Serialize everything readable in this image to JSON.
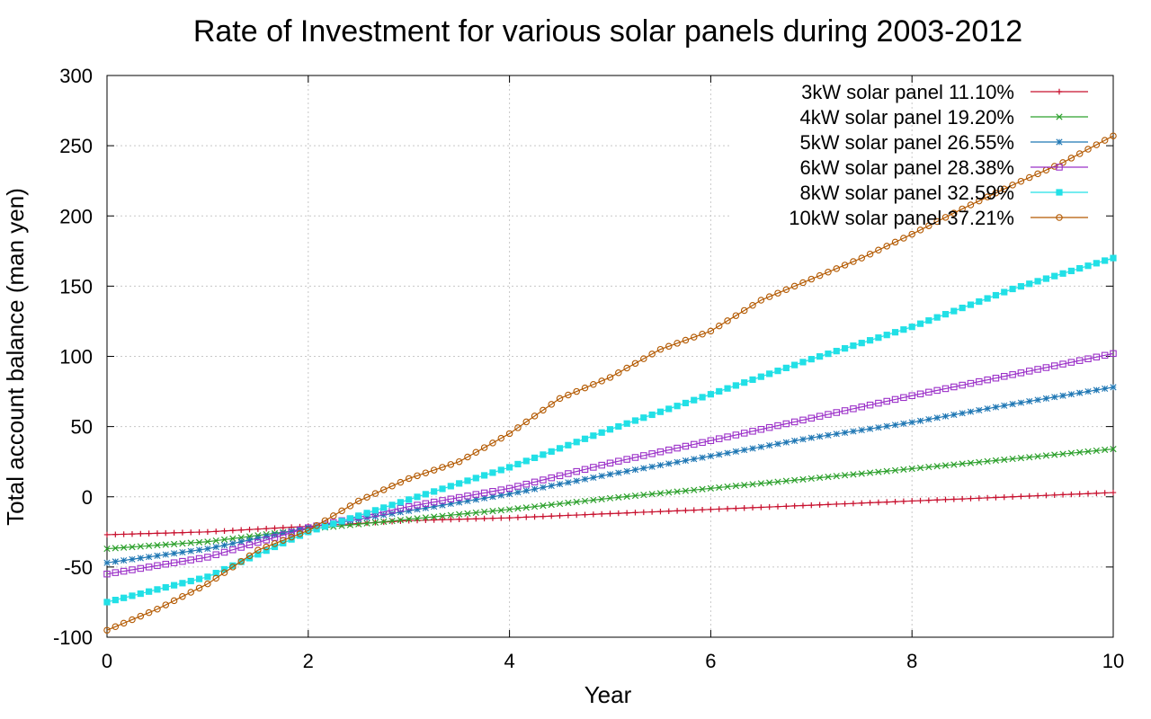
{
  "chart_data": {
    "type": "line",
    "title": "Rate of Investment for various solar panels during 2003-2012",
    "xlabel": "Year",
    "ylabel": "Total account balance (man yen)",
    "xlim": [
      0,
      10
    ],
    "ylim": [
      -100,
      300
    ],
    "xticks": [
      0,
      2,
      4,
      6,
      8,
      10
    ],
    "yticks": [
      -100,
      -50,
      0,
      50,
      100,
      150,
      200,
      250,
      300
    ],
    "grid": true,
    "legend_position": "top-right",
    "series": [
      {
        "name": "3kW solar panel 11.10%",
        "color": "#c8102e",
        "marker": "plus",
        "x": [
          0,
          1,
          2,
          3,
          4,
          5,
          6,
          7,
          8,
          9,
          10
        ],
        "y": [
          -27,
          -25,
          -21,
          -17,
          -15,
          -12,
          -9,
          -6,
          -3,
          0,
          3
        ]
      },
      {
        "name": "4kW solar panel 19.20%",
        "color": "#2ca02c",
        "marker": "x",
        "x": [
          0,
          1,
          2,
          3,
          4,
          5,
          6,
          7,
          8,
          9,
          10
        ],
        "y": [
          -37,
          -32,
          -23,
          -16,
          -9,
          -1,
          6,
          13,
          20,
          27,
          34
        ]
      },
      {
        "name": "5kW solar panel 26.55%",
        "color": "#1f77b4",
        "marker": "asterisk",
        "x": [
          0,
          1,
          2,
          3,
          4,
          5,
          6,
          7,
          8,
          9,
          10
        ],
        "y": [
          -47,
          -37,
          -22,
          -10,
          2,
          16,
          29,
          42,
          53,
          66,
          78
        ]
      },
      {
        "name": "6kW solar panel 28.38%",
        "color": "#9b30c8",
        "marker": "square-open",
        "x": [
          0,
          1,
          2,
          3,
          4,
          5,
          6,
          7,
          8,
          9,
          10
        ],
        "y": [
          -55,
          -43,
          -22,
          -7,
          6,
          24,
          40,
          56,
          72,
          87,
          102
        ]
      },
      {
        "name": "8kW solar panel 32.59%",
        "color": "#22e0e6",
        "marker": "square-filled",
        "x": [
          0,
          1,
          2,
          3,
          4,
          5,
          6,
          7,
          8,
          9,
          10
        ],
        "y": [
          -75,
          -57,
          -25,
          -2,
          21,
          48,
          73,
          98,
          121,
          148,
          170
        ]
      },
      {
        "name": "10kW solar panel 37.21%",
        "color": "#b35900",
        "marker": "circle-open",
        "x": [
          0,
          0.5,
          1,
          1.5,
          2,
          2.5,
          3,
          3.5,
          4,
          4.5,
          5,
          5.5,
          6,
          6.5,
          7,
          7.5,
          8,
          8.5,
          9,
          9.5,
          10
        ],
        "y": [
          -95,
          -80,
          -62,
          -38,
          -24,
          -3,
          13,
          25,
          45,
          70,
          85,
          105,
          118,
          140,
          155,
          170,
          187,
          205,
          222,
          238,
          257
        ]
      }
    ]
  }
}
